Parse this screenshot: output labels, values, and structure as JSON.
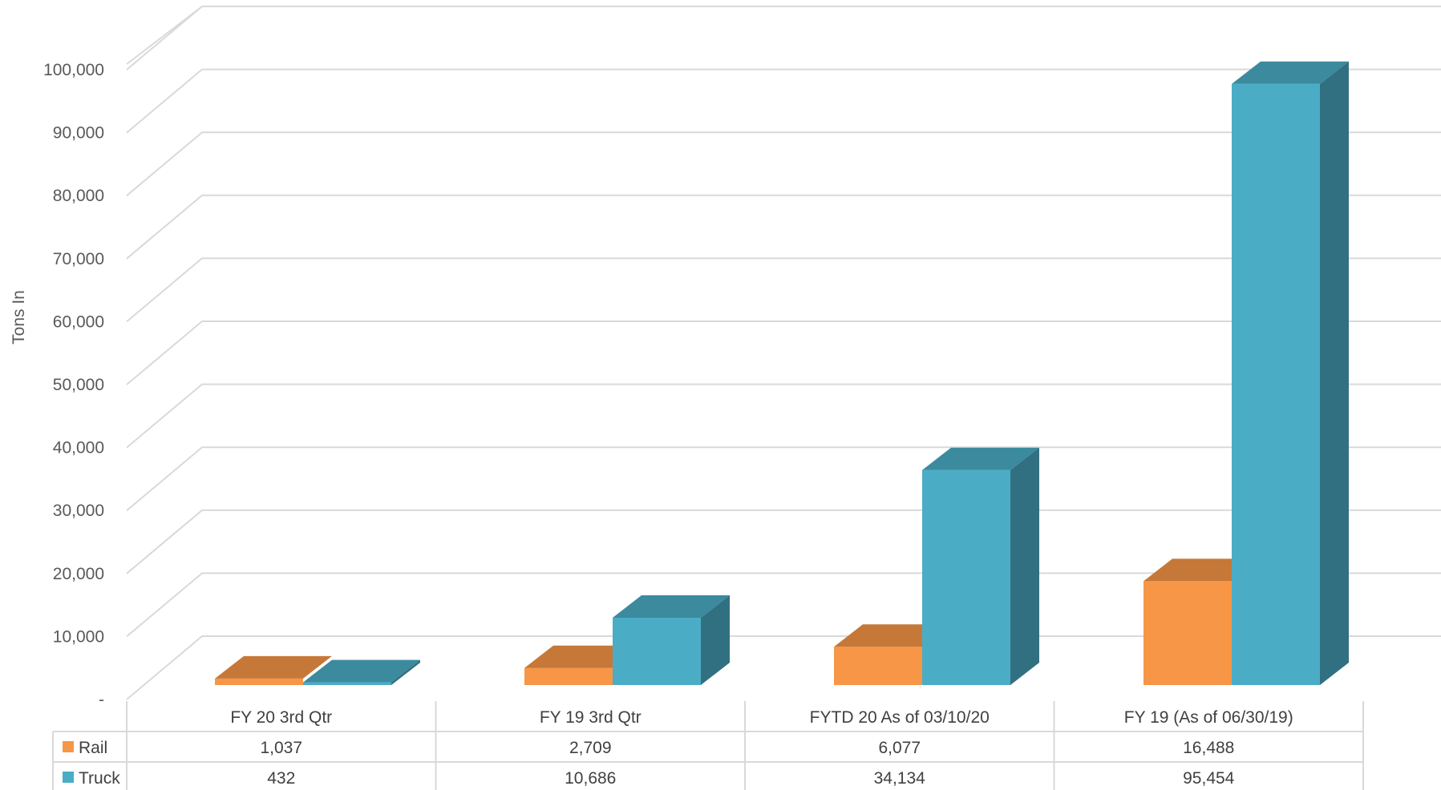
{
  "chart_data": {
    "type": "bar",
    "style": "3d-clustered-column-with-data-table",
    "title": "",
    "ylabel": "Tons In",
    "xlabel": "",
    "ylim": [
      0,
      100000
    ],
    "y_ticks": [
      0,
      10000,
      20000,
      30000,
      40000,
      50000,
      60000,
      70000,
      80000,
      90000,
      100000
    ],
    "y_tick_labels": [
      "-",
      "10,000",
      "20,000",
      "30,000",
      "40,000",
      "50,000",
      "60,000",
      "70,000",
      "80,000",
      "90,000",
      "100,000"
    ],
    "grid": true,
    "legend": "in-data-table",
    "categories": [
      "FY 20 3rd Qtr",
      "FY 19 3rd Qtr",
      "FYTD 20 As of 03/10/20",
      "FY 19 (As of 06/30/19)"
    ],
    "series": [
      {
        "name": "Rail",
        "values": [
          1037,
          2709,
          6077,
          16488
        ],
        "value_labels": [
          "1,037",
          "2,709",
          "6,077",
          "16,488"
        ],
        "color": "#F79646"
      },
      {
        "name": "Truck",
        "values": [
          432,
          10686,
          34134,
          95454
        ],
        "value_labels": [
          "432",
          "10,686",
          "34,134",
          "95,454"
        ],
        "color": "#4BACC6"
      }
    ]
  }
}
